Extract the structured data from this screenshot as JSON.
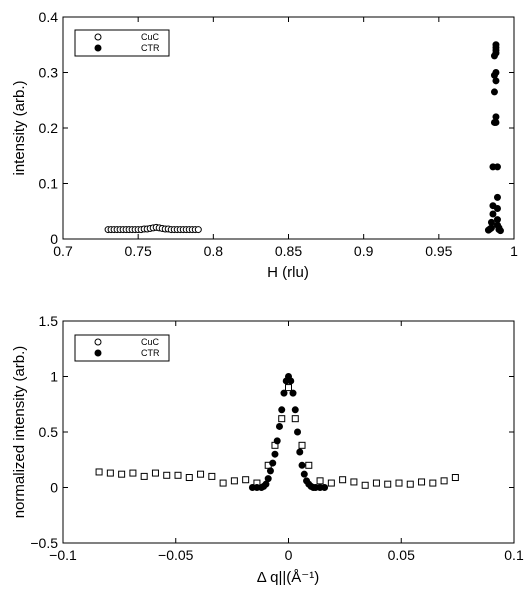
{
  "chart_data": [
    {
      "type": "scatter",
      "xlabel": "H (rlu)",
      "ylabel": "intensity (arb.)",
      "xlim": [
        0.7,
        1.0
      ],
      "ylim": [
        0,
        0.4
      ],
      "xticks": [
        "0.7",
        "0.75",
        "0.8",
        "0.85",
        "0.9",
        "0.95",
        "1"
      ],
      "yticks": [
        "0",
        "0.1",
        "0.2",
        "0.3",
        "0.4"
      ],
      "legend": [
        "CuC",
        "CTR"
      ],
      "legend_position": "top-left",
      "series": [
        {
          "name": "CuC",
          "marker": "open-circle",
          "x": [
            0.73,
            0.732,
            0.734,
            0.736,
            0.738,
            0.74,
            0.742,
            0.744,
            0.746,
            0.748,
            0.75,
            0.752,
            0.754,
            0.756,
            0.758,
            0.76,
            0.762,
            0.764,
            0.766,
            0.768,
            0.77,
            0.772,
            0.774,
            0.776,
            0.778,
            0.78,
            0.782,
            0.784,
            0.786,
            0.788,
            0.79
          ],
          "y": [
            0.017,
            0.017,
            0.017,
            0.017,
            0.017,
            0.017,
            0.017,
            0.017,
            0.017,
            0.017,
            0.017,
            0.017,
            0.018,
            0.018,
            0.019,
            0.02,
            0.021,
            0.02,
            0.019,
            0.018,
            0.018,
            0.017,
            0.017,
            0.017,
            0.017,
            0.017,
            0.017,
            0.017,
            0.017,
            0.017,
            0.017
          ]
        },
        {
          "name": "CTR",
          "marker": "filled-circle",
          "x": [
            0.983,
            0.984,
            0.985,
            0.985,
            0.986,
            0.986,
            0.986,
            0.987,
            0.987,
            0.987,
            0.987,
            0.988,
            0.988,
            0.988,
            0.988,
            0.988,
            0.988,
            0.988,
            0.988,
            0.989,
            0.989,
            0.989,
            0.989,
            0.989,
            0.99,
            0.99,
            0.991
          ],
          "y": [
            0.016,
            0.018,
            0.02,
            0.03,
            0.045,
            0.06,
            0.13,
            0.21,
            0.265,
            0.295,
            0.33,
            0.34,
            0.35,
            0.345,
            0.335,
            0.3,
            0.285,
            0.22,
            0.21,
            0.13,
            0.075,
            0.055,
            0.035,
            0.025,
            0.02,
            0.017,
            0.015
          ]
        }
      ]
    },
    {
      "type": "scatter",
      "xlabel": "Δ q||(Å⁻¹)",
      "ylabel": "normalized intensity (arb.)",
      "xlim": [
        -0.1,
        0.1
      ],
      "ylim": [
        -0.5,
        1.5
      ],
      "xticks": [
        "−0.1",
        "−0.05",
        "0",
        "0.05",
        "0.1"
      ],
      "yticks": [
        "−0.5",
        "0",
        "0.5",
        "1",
        "1.5"
      ],
      "legend": [
        "CuC",
        "CTR"
      ],
      "legend_position": "top-left",
      "series": [
        {
          "name": "CuC",
          "marker": "open-square",
          "x": [
            -0.084,
            -0.079,
            -0.074,
            -0.069,
            -0.064,
            -0.059,
            -0.054,
            -0.049,
            -0.044,
            -0.039,
            -0.034,
            -0.029,
            -0.024,
            -0.019,
            -0.014,
            -0.009,
            -0.006,
            -0.003,
            0.0,
            0.003,
            0.006,
            0.009,
            0.014,
            0.019,
            0.024,
            0.029,
            0.034,
            0.039,
            0.044,
            0.049,
            0.054,
            0.059,
            0.064,
            0.069,
            0.074
          ],
          "y": [
            0.14,
            0.13,
            0.12,
            0.13,
            0.1,
            0.13,
            0.11,
            0.11,
            0.09,
            0.12,
            0.1,
            0.04,
            0.06,
            0.07,
            0.04,
            0.2,
            0.38,
            0.62,
            0.9,
            0.62,
            0.38,
            0.2,
            0.06,
            0.04,
            0.07,
            0.05,
            0.02,
            0.04,
            0.03,
            0.04,
            0.03,
            0.05,
            0.04,
            0.06,
            0.09
          ]
        },
        {
          "name": "CTR",
          "marker": "filled-circle",
          "x": [
            -0.016,
            -0.014,
            -0.012,
            -0.011,
            -0.01,
            -0.009,
            -0.008,
            -0.007,
            -0.006,
            -0.005,
            -0.004,
            -0.003,
            -0.002,
            -0.001,
            0.0,
            0.001,
            0.002,
            0.003,
            0.004,
            0.005,
            0.006,
            0.007,
            0.008,
            0.009,
            0.01,
            0.011,
            0.012,
            0.014,
            0.016
          ],
          "y": [
            0.0,
            0.0,
            0.0,
            0.01,
            0.03,
            0.08,
            0.15,
            0.22,
            0.3,
            0.42,
            0.55,
            0.7,
            0.85,
            0.96,
            1.0,
            0.96,
            0.85,
            0.7,
            0.5,
            0.32,
            0.2,
            0.12,
            0.06,
            0.03,
            0.01,
            0.0,
            0.0,
            0.0,
            0.0
          ]
        }
      ]
    }
  ]
}
